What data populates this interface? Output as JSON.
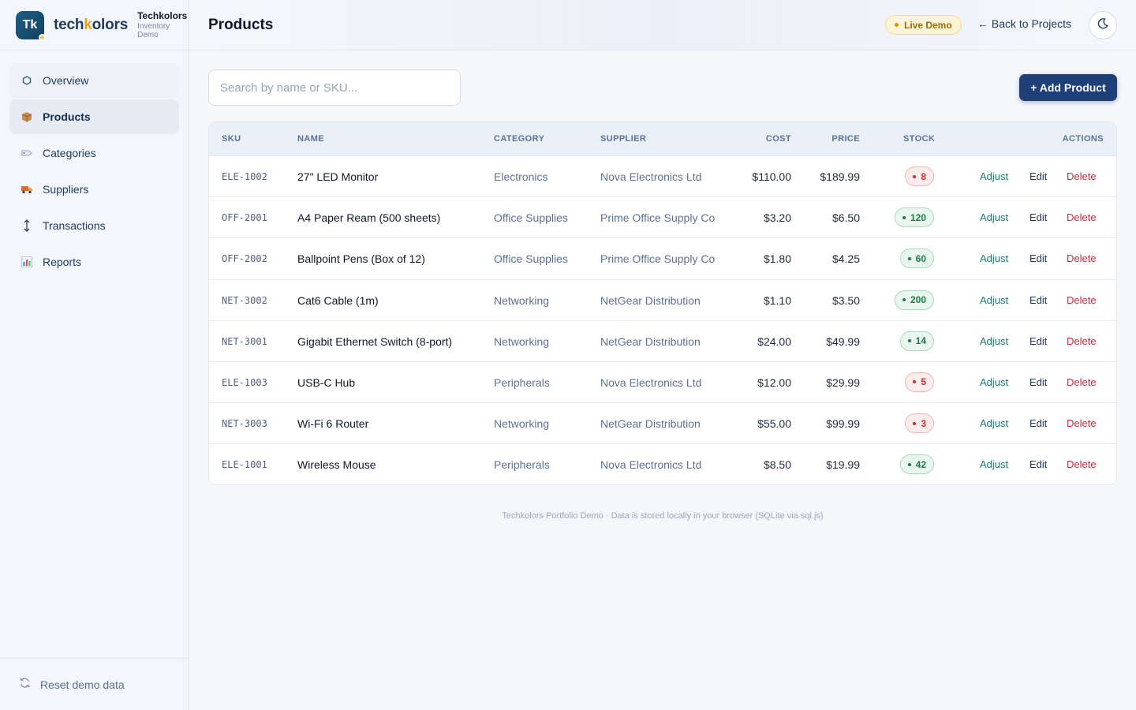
{
  "brand": {
    "logo": "Tk",
    "word_pre": "tech",
    "word_k": "k",
    "word_post": "olors",
    "name": "Techkolors",
    "sub1": "Inventory",
    "sub2": "Demo"
  },
  "nav": [
    {
      "label": "Overview",
      "icon": "hexagon-icon"
    },
    {
      "label": "Products",
      "icon": "package-icon",
      "active": true
    },
    {
      "label": "Categories",
      "icon": "tag-icon"
    },
    {
      "label": "Suppliers",
      "icon": "truck-icon"
    },
    {
      "label": "Transactions",
      "icon": "updown-arrow-icon"
    },
    {
      "label": "Reports",
      "icon": "bar-chart-icon"
    }
  ],
  "sidebar_footer": {
    "label": "Reset demo data"
  },
  "header": {
    "title": "Products",
    "badge": "Live Demo",
    "back": "← Back to Projects"
  },
  "toolbar": {
    "search_placeholder": "Search by name or SKU...",
    "add_label": "+ Add Product"
  },
  "table": {
    "columns": [
      "SKU",
      "NAME",
      "CATEGORY",
      "SUPPLIER",
      "COST",
      "PRICE",
      "STOCK",
      "ACTIONS"
    ],
    "actions": {
      "adjust": "Adjust",
      "edit": "Edit",
      "delete": "Delete"
    },
    "rows": [
      {
        "sku": "ELE-1002",
        "name": "27\" LED Monitor",
        "category": "Electronics",
        "supplier": "Nova Electronics Ltd",
        "cost": "$110.00",
        "price": "$189.99",
        "stock": "8",
        "level": "low"
      },
      {
        "sku": "OFF-2001",
        "name": "A4 Paper Ream (500 sheets)",
        "category": "Office Supplies",
        "supplier": "Prime Office Supply Co",
        "cost": "$3.20",
        "price": "$6.50",
        "stock": "120",
        "level": "ok"
      },
      {
        "sku": "OFF-2002",
        "name": "Ballpoint Pens (Box of 12)",
        "category": "Office Supplies",
        "supplier": "Prime Office Supply Co",
        "cost": "$1.80",
        "price": "$4.25",
        "stock": "60",
        "level": "ok"
      },
      {
        "sku": "NET-3002",
        "name": "Cat6 Cable (1m)",
        "category": "Networking",
        "supplier": "NetGear Distribution",
        "cost": "$1.10",
        "price": "$3.50",
        "stock": "200",
        "level": "ok"
      },
      {
        "sku": "NET-3001",
        "name": "Gigabit Ethernet Switch (8-port)",
        "category": "Networking",
        "supplier": "NetGear Distribution",
        "cost": "$24.00",
        "price": "$49.99",
        "stock": "14",
        "level": "ok"
      },
      {
        "sku": "ELE-1003",
        "name": "USB-C Hub",
        "category": "Peripherals",
        "supplier": "Nova Electronics Ltd",
        "cost": "$12.00",
        "price": "$29.99",
        "stock": "5",
        "level": "low"
      },
      {
        "sku": "NET-3003",
        "name": "Wi-Fi 6 Router",
        "category": "Networking",
        "supplier": "NetGear Distribution",
        "cost": "$55.00",
        "price": "$99.99",
        "stock": "3",
        "level": "low"
      },
      {
        "sku": "ELE-1001",
        "name": "Wireless Mouse",
        "category": "Peripherals",
        "supplier": "Nova Electronics Ltd",
        "cost": "$8.50",
        "price": "$19.99",
        "stock": "42",
        "level": "ok"
      }
    ]
  },
  "footer": {
    "note": "Techkolors Portfolio Demo · Data is stored locally in your browser (SQLite via sql.js)"
  },
  "colors": {
    "accent": "#1e3f78",
    "danger": "#d12b3f",
    "adjust": "#1c7a73",
    "badge": "#fdf4d6"
  }
}
